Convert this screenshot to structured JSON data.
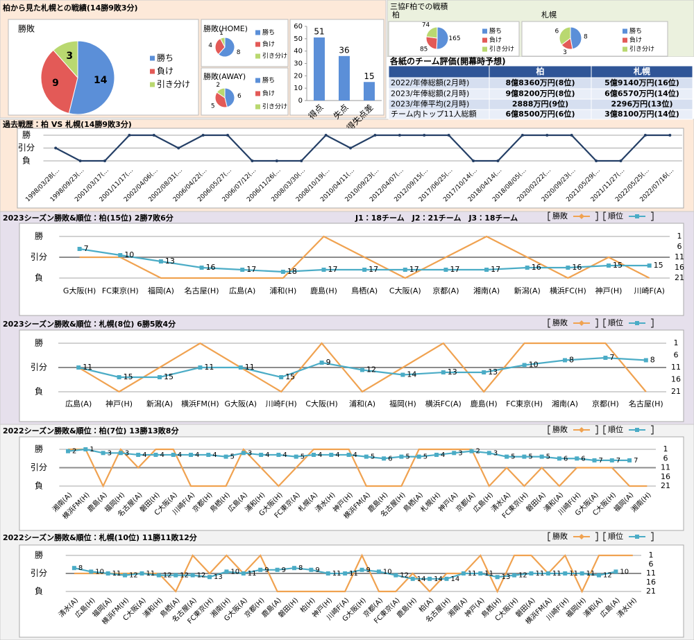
{
  "sections": [
    "柏から見た札幌との戦績(14勝9敗3分)",
    "三協F柏での戦積"
  ],
  "table": {
    "title": "各紙のチーム評価(開幕時予想)",
    "header": [
      "柏",
      "札幌"
    ],
    "rows": [
      [
        "2022/年俸総額(2月時)",
        "8億8360万円(8位)",
        "5億9140万円(16位)"
      ],
      [
        "2023/年俸総額(2月時)",
        "9億8200万円(8位)",
        "6億6570万円(14位)"
      ],
      [
        "2023/年俸平均(2月時)",
        "2888万円(9位)",
        "2296万円(13位)"
      ],
      [
        "チーム内トップ11人総額",
        "6億8500万円(6位)",
        "3億8100万円(14位)"
      ]
    ]
  },
  "chart_data": [
    {
      "type": "pie",
      "title": "勝敗",
      "categories": [
        "勝ち",
        "負け",
        "引き分け"
      ],
      "values": [
        14,
        9,
        3
      ],
      "colors": [
        "#5b8fd8",
        "#e35a57",
        "#b9d870"
      ]
    },
    {
      "type": "pie",
      "title": "勝敗(HOME)",
      "categories": [
        "勝ち",
        "負け",
        "引き分け"
      ],
      "values": [
        8,
        4,
        1
      ],
      "colors": [
        "#5b8fd8",
        "#e35a57",
        "#b9d870"
      ]
    },
    {
      "type": "pie",
      "title": "勝敗(AWAY)",
      "categories": [
        "勝ち",
        "負け",
        "引き分け"
      ],
      "values": [
        6,
        5,
        2
      ],
      "colors": [
        "#5b8fd8",
        "#e35a57",
        "#b9d870"
      ]
    },
    {
      "type": "bar",
      "categories": [
        "得点",
        "失点",
        "得失点差"
      ],
      "values": [
        51,
        36,
        15
      ],
      "color": "#5b8fd8",
      "ylim": [
        0,
        60
      ],
      "yticks": [
        0,
        10,
        20,
        30,
        40,
        50,
        60
      ],
      "grid": false
    },
    {
      "type": "pie",
      "title": "柏",
      "categories": [
        "勝ち",
        "負け",
        "引き分け"
      ],
      "values": [
        165,
        85,
        74
      ],
      "colors": [
        "#5b8fd8",
        "#e35a57",
        "#b9d870"
      ]
    },
    {
      "type": "pie",
      "title": "札幌",
      "categories": [
        "勝ち",
        "負け",
        "引き分け"
      ],
      "values": [
        8,
        3,
        6
      ],
      "colors": [
        "#5b8fd8",
        "#e35a57",
        "#b9d870"
      ]
    },
    {
      "type": "line",
      "title": "過去戦歴：柏 VS 札幌(14勝9敗3分)",
      "categories": [
        "1998/03/28(…",
        "1998/09/23(…",
        "2001/03/17(…",
        "2001/11/17(…",
        "2002/04/06(…",
        "2002/08/31(…",
        "2006/04/22(…",
        "2006/05/27(…",
        "2006/07/12(…",
        "2006/11/26(…",
        "2008/03/30(…",
        "2008/10/19(…",
        "2010/04/11(…",
        "2010/09/23(…",
        "2012/04/07(…",
        "2012/09/15(…",
        "2017/06/25(…",
        "2017/10/14(…",
        "2018/04/14(…",
        "2018/08/05(…",
        "2020/02/22(…",
        "2020/09/23(…",
        "2021/05/29(…",
        "2021/11/27(…",
        "2022/05/25(…",
        "2022/07/16(…"
      ],
      "values": [
        0,
        -1,
        -1,
        1,
        1,
        0,
        1,
        1,
        -1,
        -1,
        -1,
        1,
        0,
        1,
        1,
        1,
        1,
        -1,
        -1,
        1,
        1,
        1,
        -1,
        -1,
        1,
        1
      ],
      "color": "#243f66",
      "ylim": [
        -1,
        1
      ],
      "yticks": [
        {
          "value": 1,
          "label": "勝"
        },
        {
          "value": 0,
          "label": "引分"
        },
        {
          "value": -1,
          "label": "負"
        }
      ],
      "grid": true
    },
    {
      "type": "line",
      "title": "2023シーズン勝敗&順位：柏(15位) 2勝7敗6分",
      "subtitle": "J1：18チーム　J2：21チーム　J3：18チーム",
      "categories": [
        "G大阪(H)",
        "FC東京(H)",
        "福岡(A)",
        "名古屋(H)",
        "広島(A)",
        "浦和(H)",
        "鹿島(H)",
        "鳥栖(A)",
        "C大阪(A)",
        "京都(A)",
        "湘南(A)",
        "新潟(A)",
        "横浜FC(H)",
        "神戸(H)",
        "川崎F(A)"
      ],
      "series": [
        {
          "name": "勝敗",
          "color": "#f0a250",
          "values": [
            0,
            0,
            -1,
            -1,
            -1,
            -1,
            1,
            0,
            -1,
            0,
            1,
            0,
            -1,
            0,
            -1
          ]
        },
        {
          "name": "順位",
          "color": "#4bacc6",
          "axis": "y2",
          "values": [
            7,
            10,
            13,
            16,
            17,
            18,
            17,
            17,
            17,
            17,
            17,
            16,
            16,
            15,
            15
          ]
        }
      ],
      "ylim": [
        -1,
        1
      ],
      "yticks": [
        {
          "value": 1,
          "label": "勝"
        },
        {
          "value": 0,
          "label": "引分"
        },
        {
          "value": -1,
          "label": "負"
        }
      ],
      "y2lim": [
        1,
        21
      ],
      "y2ticks": [
        1,
        6,
        11,
        16,
        21
      ],
      "y2_inverted": true,
      "grid": true
    },
    {
      "type": "line",
      "title": "2023シーズン勝敗&順位：札幌(8位) 6勝5敗4分",
      "categories": [
        "広島(A)",
        "神戸(H)",
        "新潟(A)",
        "横浜FM(H)",
        "G大阪(A)",
        "川崎F(H)",
        "C大阪(H)",
        "浦和(A)",
        "福岡(H)",
        "横浜FC(A)",
        "鹿島(H)",
        "FC東京(H)",
        "湘南(A)",
        "京都(H)",
        "名古屋(H)"
      ],
      "series": [
        {
          "name": "勝敗",
          "color": "#f0a250",
          "values": [
            0,
            -1,
            0,
            1,
            0,
            -1,
            1,
            -1,
            0,
            1,
            -1,
            1,
            1,
            1,
            -1
          ]
        },
        {
          "name": "順位",
          "color": "#4bacc6",
          "axis": "y2",
          "values": [
            11,
            15,
            15,
            11,
            11,
            15,
            9,
            12,
            14,
            13,
            13,
            10,
            8,
            7,
            8
          ]
        }
      ],
      "ylim": [
        -1,
        1
      ],
      "yticks": [
        {
          "value": 1,
          "label": "勝"
        },
        {
          "value": 0,
          "label": "引分"
        },
        {
          "value": -1,
          "label": "負"
        }
      ],
      "y2lim": [
        1,
        21
      ],
      "y2ticks": [
        1,
        6,
        11,
        16,
        21
      ],
      "y2_inverted": true,
      "grid": true
    },
    {
      "type": "line",
      "title": "2022シーズン勝敗&順位：柏(7位) 13勝13敗8分",
      "categories": [
        "湘南(A)",
        "横浜FM(H)",
        "鹿島(A)",
        "福岡(H)",
        "名古屋(A)",
        "磐田(H)",
        "C大阪(A)",
        "川崎F(A)",
        "京都(H)",
        "鳥栖(H)",
        "広島(A)",
        "浦和(H)",
        "G大阪(H)",
        "FC東京(A)",
        "札幌(A)",
        "清水(H)",
        "神戸(H)",
        "横浜FM(A)",
        "鹿島(H)",
        "名古屋(H)",
        "鳥栖(A)",
        "札幌(H)",
        "神戸(A)",
        "京都(A)",
        "広島(H)",
        "清水(A)",
        "FC東京(H)",
        "磐田(A)",
        "浦和(A)",
        "川崎F(H)",
        "G大阪(A)",
        "C大阪(H)",
        "福岡(A)",
        "湘南(H)"
      ],
      "series": [
        {
          "name": "勝敗",
          "color": "#f0a250",
          "values": [
            1,
            1,
            -1,
            1,
            0,
            1,
            1,
            -1,
            -1,
            -1,
            1,
            0,
            -1,
            0,
            1,
            1,
            1,
            -1,
            -1,
            -1,
            1,
            1,
            1,
            1,
            -1,
            0,
            -1,
            0,
            -1,
            0,
            0,
            0,
            -1,
            -1
          ]
        },
        {
          "name": "順位",
          "color": "#4bacc6",
          "axis": "y2",
          "values": [
            2,
            1,
            3,
            3,
            4,
            4,
            4,
            4,
            4,
            5,
            3,
            4,
            4,
            5,
            4,
            4,
            4,
            5,
            6,
            5,
            5,
            4,
            3,
            2,
            3,
            5,
            5,
            5,
            6,
            6,
            7,
            7,
            7,
            null
          ]
        }
      ],
      "ylim": [
        -1,
        1
      ],
      "yticks": [
        {
          "value": 1,
          "label": "勝"
        },
        {
          "value": 0,
          "label": "引分"
        },
        {
          "value": -1,
          "label": "負"
        }
      ],
      "y2lim": [
        1,
        21
      ],
      "y2ticks": [
        1,
        6,
        11,
        16,
        21
      ],
      "y2_inverted": true,
      "grid": true
    },
    {
      "type": "line",
      "title": "2022シーズン勝敗&順位：札幌(10位) 11勝11敗12分",
      "categories": [
        "清水(A)",
        "広島(H)",
        "福岡(A)",
        "横浜FM(H)",
        "C大阪(A)",
        "浦和(H)",
        "鳥栖(A)",
        "名古屋(A)",
        "FC東京(H)",
        "湘南(H)",
        "G大阪(A)",
        "京都(H)",
        "鹿島(A)",
        "磐田(H)",
        "柏(H)",
        "神戸(H)",
        "川崎F(A)",
        "G大阪(H)",
        "京都(A)",
        "FC東京(A)",
        "鹿島(H)",
        "柏(A)",
        "名古屋(H)",
        "湘南(A)",
        "神戸(A)",
        "鳥栖(H)",
        "C大阪(H)",
        "磐田(A)",
        "横浜FM(A)",
        "川崎F(H)",
        "福岡(H)",
        "浦和(A)",
        "広島(A)",
        "清水(H)"
      ],
      "series": [
        {
          "name": "勝敗",
          "color": "#f0a250",
          "values": [
            0,
            0,
            0,
            0,
            0,
            0,
            -1,
            1,
            0,
            1,
            0,
            1,
            -1,
            -1,
            -1,
            -1,
            -1,
            1,
            -1,
            -1,
            0,
            -1,
            0,
            0,
            1,
            -1,
            1,
            1,
            0,
            1,
            -1,
            1,
            1,
            1
          ]
        },
        {
          "name": "順位",
          "color": "#4bacc6",
          "axis": "y2",
          "values": [
            8,
            10,
            11,
            12,
            11,
            12,
            12,
            12,
            13,
            10,
            11,
            9,
            9,
            8,
            9,
            11,
            11,
            9,
            10,
            12,
            14,
            14,
            14,
            11,
            11,
            13,
            12,
            11,
            11,
            11,
            11,
            12,
            10,
            null
          ]
        }
      ],
      "ylim": [
        -1,
        1
      ],
      "yticks": [
        {
          "value": 1,
          "label": "勝"
        },
        {
          "value": 0,
          "label": "引分"
        },
        {
          "value": -1,
          "label": "負"
        }
      ],
      "y2lim": [
        1,
        21
      ],
      "y2ticks": [
        1,
        6,
        11,
        16,
        21
      ],
      "y2_inverted": true,
      "grid": true
    }
  ]
}
